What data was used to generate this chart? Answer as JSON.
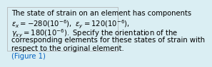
{
  "background_color": "#daeef3",
  "border_color": "#aaaaaa",
  "line1": "The state of strain on an element has components",
  "line4": "corresponding elements for these states of strain with",
  "line5": "respect to the original element.",
  "link_text": "(Figure 1)",
  "link_color": "#0563C1",
  "text_color": "#000000",
  "fontsize": 7.2
}
